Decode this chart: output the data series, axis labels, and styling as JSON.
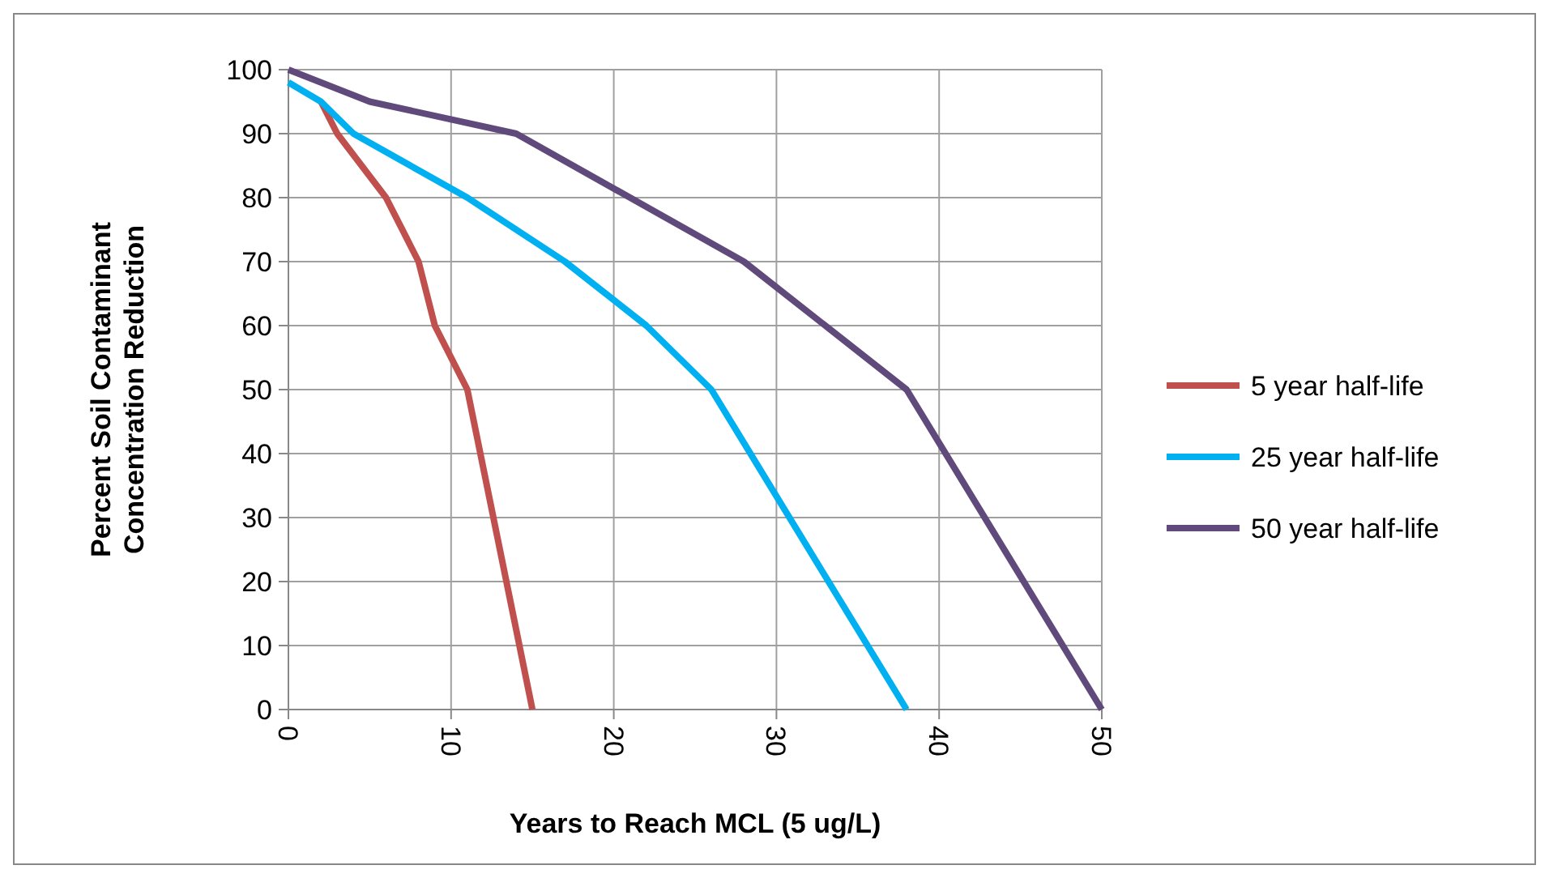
{
  "chart_data": {
    "type": "line",
    "xlabel": "Years to Reach MCL (5 ug/L)",
    "ylabel": "Percent Soil Contaminant Concentration Reduction",
    "xlim": [
      0,
      50
    ],
    "xticks": [
      0,
      10,
      20,
      30,
      40,
      50
    ],
    "ylim": [
      0,
      100
    ],
    "yticks": [
      0,
      10,
      20,
      30,
      40,
      50,
      60,
      70,
      80,
      90,
      100
    ],
    "grid": true,
    "legend": "right",
    "marker": "none",
    "line_style": "solid",
    "series": [
      {
        "name": "5 year half-life",
        "color": "#c0504d",
        "x": [
          2,
          3,
          6,
          8,
          9,
          11,
          15
        ],
        "values": [
          95,
          90,
          80,
          70,
          60,
          50,
          0
        ]
      },
      {
        "name": "25 year half-life",
        "color": "#00b0f0",
        "x": [
          0,
          2,
          4,
          11,
          17,
          22,
          26,
          38
        ],
        "values": [
          98,
          95,
          90,
          80,
          70,
          60,
          50,
          0
        ]
      },
      {
        "name": "50 year half-life",
        "color": "#604a7b",
        "x": [
          0,
          5,
          14,
          28,
          38,
          50
        ],
        "values": [
          100,
          95,
          90,
          70,
          50,
          0
        ]
      }
    ]
  }
}
